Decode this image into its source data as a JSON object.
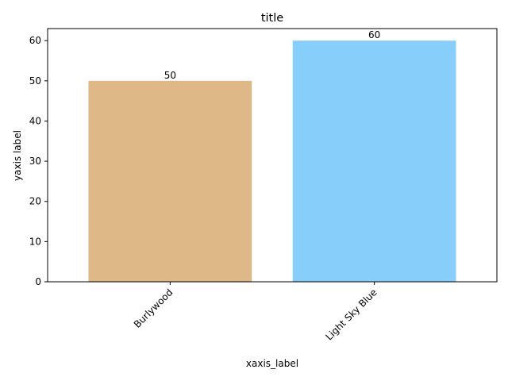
{
  "chart_data": {
    "type": "bar",
    "title": "title",
    "xlabel": "xaxis_label",
    "ylabel": "yaxis label",
    "categories": [
      "Burlywood",
      "Light Sky Blue"
    ],
    "values": [
      50,
      60
    ],
    "colors": [
      "#DEB887",
      "#87CEFA"
    ],
    "data_labels": [
      "50",
      "60"
    ],
    "ylim": [
      0,
      63
    ],
    "yticks": [
      0,
      10,
      20,
      30,
      40,
      50,
      60
    ],
    "xtick_rotation_deg": 45,
    "grid": false,
    "legend": "none"
  }
}
